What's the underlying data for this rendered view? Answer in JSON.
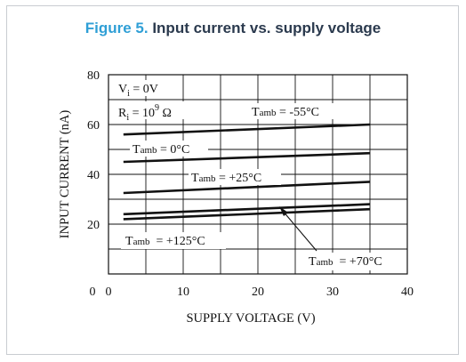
{
  "figure": {
    "label": "Figure 5.",
    "caption": "Input current vs. supply voltage"
  },
  "chart_data": {
    "type": "line",
    "xlabel": "SUPPLY VOLTAGE (V)",
    "ylabel": "INPUT CURRENT (nA)",
    "xlim": [
      0,
      40
    ],
    "ylim": [
      0,
      80
    ],
    "x_ticks": [
      {
        "value": 0,
        "label": "0"
      },
      {
        "value": 10,
        "label": "10"
      },
      {
        "value": 20,
        "label": "20"
      },
      {
        "value": 30,
        "label": "30"
      },
      {
        "value": 40,
        "label": "40"
      }
    ],
    "y_ticks": [
      {
        "value": 20,
        "label": "20"
      },
      {
        "value": 40,
        "label": "40"
      },
      {
        "value": 60,
        "label": "60"
      },
      {
        "value": 80,
        "label": "80"
      }
    ],
    "grid": true,
    "conditions": {
      "vi": {
        "sym": "V",
        "sub": "i",
        "rest": " = 0V"
      },
      "ri": {
        "sym": "R",
        "sub": "i",
        "mid": " = 10",
        "sup": "9",
        "unit": " Ω"
      }
    },
    "series": [
      {
        "name": "Tamb = -55°C",
        "x": [
          2,
          35
        ],
        "y": [
          56,
          60
        ]
      },
      {
        "name": "Tamb = 0°C",
        "x": [
          2,
          35
        ],
        "y": [
          45,
          48.5
        ]
      },
      {
        "name": "Tamb = +25°C",
        "x": [
          2,
          35
        ],
        "y": [
          32.5,
          37
        ]
      },
      {
        "name": "Tamb = +70°C",
        "x": [
          2,
          35
        ],
        "y": [
          24,
          28
        ]
      },
      {
        "name": "Tamb = +125°C",
        "x": [
          2,
          35
        ],
        "y": [
          22,
          26
        ]
      }
    ],
    "labels": {
      "m55": {
        "pre": "T",
        "sub": "amb",
        "post": " = -55°C"
      },
      "z0": {
        "pre": "T",
        "sub": "amb",
        "post": " = 0°C"
      },
      "p25": {
        "pre": "T",
        "sub": "amb",
        "post": " = +25°C"
      },
      "p125": {
        "pre": "T",
        "sub": "amb",
        "post": "  = +125°C"
      },
      "p70": {
        "pre": "T",
        "sub": "amb",
        "post": "  = +70°C"
      }
    }
  }
}
